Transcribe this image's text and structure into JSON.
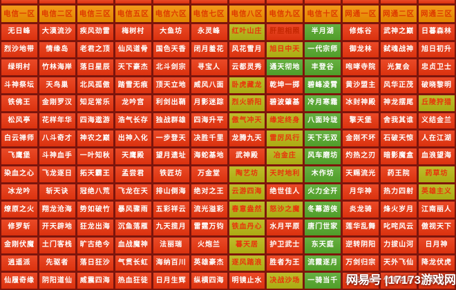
{
  "page": {
    "watermark": "网易号 |17173游戏网"
  },
  "colors": {
    "grid_lines": "#7c150c",
    "cell_red": "#e8350f",
    "cell_green": "#55a72c",
    "cell_yellow": "#b7b513",
    "header_bg": "#f18e00",
    "header_text": "#dd3a00",
    "yellow_text": "#e8330c",
    "red_dim_text": "#c42600",
    "watermark_text": "#ffffff"
  },
  "legend": {
    "red": "busy-server",
    "yellow": "moderate-server",
    "green": "available-server"
  },
  "grid": {
    "columns": [
      {
        "header": "电信一区",
        "servers": [
          {
            "n": "无日峰",
            "s": "r"
          },
          {
            "n": "烈沙地带",
            "s": "r"
          },
          {
            "n": "绿明村",
            "s": "r"
          },
          {
            "n": "斗神祭坛",
            "s": "r"
          },
          {
            "n": "铁佛王",
            "s": "r"
          },
          {
            "n": "松风亭",
            "s": "r"
          },
          {
            "n": "白云禅师",
            "s": "r"
          },
          {
            "n": "飞鹰堡",
            "s": "r"
          },
          {
            "n": "染血之心",
            "s": "r"
          },
          {
            "n": "冰龙吟",
            "s": "r"
          },
          {
            "n": "燎原之火",
            "s": "r"
          },
          {
            "n": "修罗斩",
            "s": "r"
          },
          {
            "n": "金刚伏魔",
            "s": "r"
          },
          {
            "n": "逍遥派",
            "s": "r"
          },
          {
            "n": "仙履奇缘",
            "s": "r"
          }
        ]
      },
      {
        "header": "电信二区",
        "servers": [
          {
            "n": "大漠流沙",
            "s": "r"
          },
          {
            "n": "情缘岛",
            "s": "r"
          },
          {
            "n": "竹林海岸",
            "s": "r"
          },
          {
            "n": "天鸟巢",
            "s": "r"
          },
          {
            "n": "金刚罗汉",
            "s": "r"
          },
          {
            "n": "花样年华",
            "s": "r"
          },
          {
            "n": "八斗奇才",
            "s": "r"
          },
          {
            "n": "斗神血手",
            "s": "r"
          },
          {
            "n": "飞龙逐日",
            "s": "r"
          },
          {
            "n": "斩天诀",
            "s": "r"
          },
          {
            "n": "翔龙沧海",
            "s": "r"
          },
          {
            "n": "开天辟地",
            "s": "r"
          },
          {
            "n": "土门客栈",
            "s": "r"
          },
          {
            "n": "先驱者",
            "s": "r"
          },
          {
            "n": "阴阳道仙",
            "s": "r"
          }
        ]
      },
      {
        "header": "电信三区",
        "servers": [
          {
            "n": "疾风劲雷",
            "s": "r"
          },
          {
            "n": "老君之顶",
            "s": "r"
          },
          {
            "n": "落日星辰",
            "s": "r"
          },
          {
            "n": "北风孤傲",
            "s": "r"
          },
          {
            "n": "知足常乐",
            "s": "r"
          },
          {
            "n": "四海遨游",
            "s": "r"
          },
          {
            "n": "神农之巅",
            "s": "r"
          },
          {
            "n": "一叶知秋",
            "s": "r"
          },
          {
            "n": "拓天霸王",
            "s": "r"
          },
          {
            "n": "冠绝八荒",
            "s": "r"
          },
          {
            "n": "势如破竹",
            "s": "r"
          },
          {
            "n": "狂龙出海",
            "s": "r"
          },
          {
            "n": "旷古绝今",
            "s": "r"
          },
          {
            "n": "落日狂沙",
            "s": "r"
          },
          {
            "n": "威震四海",
            "s": "r"
          }
        ]
      },
      {
        "header": "电信五区",
        "servers": [
          {
            "n": "梅树村",
            "s": "r"
          },
          {
            "n": "仙风道骨",
            "s": "r"
          },
          {
            "n": "天下豪杰",
            "s": "r"
          },
          {
            "n": "踏雪无痕",
            "s": "r"
          },
          {
            "n": "龙吟宫",
            "s": "r"
          },
          {
            "n": "浩气长存",
            "s": "r"
          },
          {
            "n": "出神入化",
            "s": "r"
          },
          {
            "n": "天鹰殿",
            "s": "r"
          },
          {
            "n": "孟尝君",
            "s": "r"
          },
          {
            "n": "飞龙在天",
            "s": "r"
          },
          {
            "n": "暴风骤雨",
            "s": "r"
          },
          {
            "n": "沉鱼落雁",
            "s": "r"
          },
          {
            "n": "血战魔神",
            "s": "r"
          },
          {
            "n": "气贯长虹",
            "s": "r"
          },
          {
            "n": "热血狂徒",
            "s": "r"
          }
        ]
      },
      {
        "header": "电信六区",
        "servers": [
          {
            "n": "大鱼坊",
            "s": "r"
          },
          {
            "n": "国色天香",
            "s": "r"
          },
          {
            "n": "北斗剑宗",
            "s": "r"
          },
          {
            "n": "顶天立地",
            "s": "r"
          },
          {
            "n": "利剑出鞘",
            "s": "r"
          },
          {
            "n": "独战群雄",
            "s": "r"
          },
          {
            "n": "一步登天",
            "s": "r"
          },
          {
            "n": "望月遗址",
            "s": "r"
          },
          {
            "n": "铁匠坊",
            "s": "r"
          },
          {
            "n": "排山倒海",
            "s": "r"
          },
          {
            "n": "五彩祥云",
            "s": "r"
          },
          {
            "n": "九天揽月",
            "s": "r"
          },
          {
            "n": "法丽瑞",
            "s": "r"
          },
          {
            "n": "海纳百川",
            "s": "r"
          },
          {
            "n": "日月生辉",
            "s": "r"
          }
        ]
      },
      {
        "header": "电信七区",
        "servers": [
          {
            "n": "永灵峰",
            "s": "r"
          },
          {
            "n": "闭月羞花",
            "s": "r"
          },
          {
            "n": "寻宝人",
            "s": "r"
          },
          {
            "n": "威风八面",
            "s": "r"
          },
          {
            "n": "月影迷踪",
            "s": "r"
          },
          {
            "n": "四海升平",
            "s": "r"
          },
          {
            "n": "决胜千里",
            "s": "r"
          },
          {
            "n": "海蛇基地",
            "s": "r"
          },
          {
            "n": "万金堂",
            "s": "r"
          },
          {
            "n": "绝对之王",
            "s": "r"
          },
          {
            "n": "流光溢彩",
            "s": "r"
          },
          {
            "n": "雷霆万钧",
            "s": "r"
          },
          {
            "n": "火炮兰",
            "s": "r"
          },
          {
            "n": "英雄豪杰",
            "s": "r"
          },
          {
            "n": "纵横四海",
            "s": "r"
          }
        ]
      },
      {
        "header": "电信八区",
        "servers": [
          {
            "n": "红叶山庄",
            "s": "y"
          },
          {
            "n": "风花雪月",
            "s": "r"
          },
          {
            "n": "云都灵秀",
            "s": "r"
          },
          {
            "n": "卧虎藏龙",
            "s": "y"
          },
          {
            "n": "烈火骄阳",
            "s": "y"
          },
          {
            "n": "傲气冲天",
            "s": "y"
          },
          {
            "n": "龙腾九天",
            "s": "r"
          },
          {
            "n": "武神殿",
            "s": "r"
          },
          {
            "n": "陶艺坊",
            "s": "y"
          },
          {
            "n": "云游四海",
            "s": "y"
          },
          {
            "n": "春意盎然",
            "s": "y"
          },
          {
            "n": "铁血丹心",
            "s": "y"
          },
          {
            "n": "暮天居",
            "s": "y"
          },
          {
            "n": "逐风踏浪",
            "s": "y"
          },
          {
            "n": "明镜止水",
            "s": "r"
          }
        ]
      },
      {
        "header": "电信九区",
        "servers": [
          {
            "n": "肝胆相照",
            "s": "rr"
          },
          {
            "n": "旭日中天",
            "s": "y"
          },
          {
            "n": "通天彻地",
            "s": "g"
          },
          {
            "n": "乾坤一掷",
            "s": "r"
          },
          {
            "n": "碧波肇基",
            "s": "r"
          },
          {
            "n": "缘定终身",
            "s": "y"
          },
          {
            "n": "雷厉风行",
            "s": "y"
          },
          {
            "n": "冶金庄",
            "s": "y"
          },
          {
            "n": "天时地利",
            "s": "y"
          },
          {
            "n": "绝世佳人",
            "s": "r"
          },
          {
            "n": "怒沙之魔",
            "s": "y"
          },
          {
            "n": "水月平原",
            "s": "r"
          },
          {
            "n": "护卫武士",
            "s": "r"
          },
          {
            "n": "胜者为王",
            "s": "r"
          },
          {
            "n": "决战沙场",
            "s": "y"
          }
        ]
      },
      {
        "header": "电信十区",
        "servers": [
          {
            "n": "半月湖",
            "s": "g"
          },
          {
            "n": "一代宗师",
            "s": "g"
          },
          {
            "n": "丰登谷",
            "s": "g"
          },
          {
            "n": "碧峰凌霄",
            "s": "g"
          },
          {
            "n": "冷月寒霜",
            "s": "g"
          },
          {
            "n": "八面玲珑",
            "s": "g"
          },
          {
            "n": "天下无双",
            "s": "g"
          },
          {
            "n": "风车磨坊",
            "s": "g"
          },
          {
            "n": "木作坊",
            "s": "g"
          },
          {
            "n": "火力全开",
            "s": "g"
          },
          {
            "n": "冬幕游侠",
            "s": "g"
          },
          {
            "n": "唐门世家",
            "s": "g"
          },
          {
            "n": "东天庭",
            "s": "g"
          },
          {
            "n": "流霞逐月",
            "s": "g"
          },
          {
            "n": "一骑当千",
            "s": "g"
          }
        ]
      },
      {
        "header": "网通一区",
        "servers": [
          {
            "n": "修炼谷",
            "s": "r"
          },
          {
            "n": "御龙林",
            "s": "r"
          },
          {
            "n": "咆哮寺院",
            "s": "r"
          },
          {
            "n": "黄沙盟主",
            "s": "r"
          },
          {
            "n": "冰封神殿",
            "s": "r"
          },
          {
            "n": "擎天堡",
            "s": "r"
          },
          {
            "n": "金刚不坏",
            "s": "r"
          },
          {
            "n": "灼热之刃",
            "s": "r"
          },
          {
            "n": "天赐流光",
            "s": "r"
          },
          {
            "n": "月华神",
            "s": "r"
          },
          {
            "n": "炎龙骑",
            "s": "r"
          },
          {
            "n": "莲华乱舞",
            "s": "r"
          },
          {
            "n": "逆转阴阳",
            "s": "r"
          },
          {
            "n": "万剑归宗",
            "s": "r"
          },
          {
            "n": "风云变幻",
            "s": "r"
          }
        ]
      },
      {
        "header": "网通二区",
        "servers": [
          {
            "n": "武神之巅",
            "s": "r"
          },
          {
            "n": "弑魂战神",
            "s": "r"
          },
          {
            "n": "光复会",
            "s": "r"
          },
          {
            "n": "风华正茂",
            "s": "r"
          },
          {
            "n": "神龙摆尾",
            "s": "r"
          },
          {
            "n": "舍我其谁",
            "s": "r"
          },
          {
            "n": "石破天惊",
            "s": "r"
          },
          {
            "n": "暗影魔盒",
            "s": "r"
          },
          {
            "n": "药王院",
            "s": "r"
          },
          {
            "n": "热力四射",
            "s": "r"
          },
          {
            "n": "烽火岁月",
            "s": "r"
          },
          {
            "n": "叱咤风云",
            "s": "r"
          },
          {
            "n": "力拔山河",
            "s": "r"
          },
          {
            "n": "天外飞仙",
            "s": "r"
          },
          {
            "n": "竹海伴月",
            "s": "r"
          }
        ]
      },
      {
        "header": "网通三区",
        "servers": [
          {
            "n": "日暮森林",
            "s": "r"
          },
          {
            "n": "旭日初升",
            "s": "r"
          },
          {
            "n": "忠贞卫士",
            "s": "r"
          },
          {
            "n": "破晓黎明",
            "s": "r"
          },
          {
            "n": "丘陵狩猎",
            "s": "y"
          },
          {
            "n": "义结金兰",
            "s": "r"
          },
          {
            "n": "人在江湖",
            "s": "r"
          },
          {
            "n": "血浪望海",
            "s": "r"
          },
          {
            "n": "药草坊",
            "s": "y"
          },
          {
            "n": "英雄主义",
            "s": "y"
          },
          {
            "n": "江南丽人",
            "s": "r"
          },
          {
            "n": "傲视天下",
            "s": "r"
          },
          {
            "n": "日月神",
            "s": "r"
          },
          {
            "n": "降龙伏虎",
            "s": "r"
          },
          {
            "n": "星罗棋布",
            "s": "r"
          }
        ]
      }
    ]
  }
}
